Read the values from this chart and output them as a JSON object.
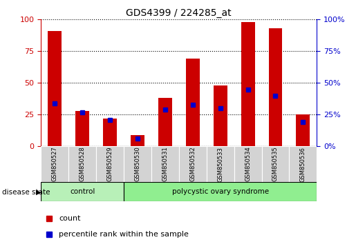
{
  "title": "GDS4399 / 224285_at",
  "samples": [
    "GSM850527",
    "GSM850528",
    "GSM850529",
    "GSM850530",
    "GSM850531",
    "GSM850532",
    "GSM850533",
    "GSM850534",
    "GSM850535",
    "GSM850536"
  ],
  "count_values": [
    91,
    28,
    22,
    9,
    38,
    69,
    48,
    98,
    93,
    25
  ],
  "percentile_values": [
    34,
    27,
    21,
    6,
    29,
    33,
    30,
    45,
    40,
    19
  ],
  "bar_color": "#CC0000",
  "percentile_color": "#0000CC",
  "ylim": [
    0,
    100
  ],
  "yticks": [
    0,
    25,
    50,
    75,
    100
  ],
  "left_axis_color": "#CC0000",
  "right_axis_color": "#0000CC",
  "legend_count_label": "count",
  "legend_percentile_label": "percentile rank within the sample",
  "disease_state_label": "disease state",
  "sample_bg_color": "#d3d3d3",
  "control_color": "#b8f0b8",
  "pcos_color": "#90EE90",
  "group_configs": [
    {
      "label": "control",
      "start": 0,
      "end": 3,
      "color": "#b8f0b8"
    },
    {
      "label": "polycystic ovary syndrome",
      "start": 3,
      "end": 10,
      "color": "#90EE90"
    }
  ]
}
